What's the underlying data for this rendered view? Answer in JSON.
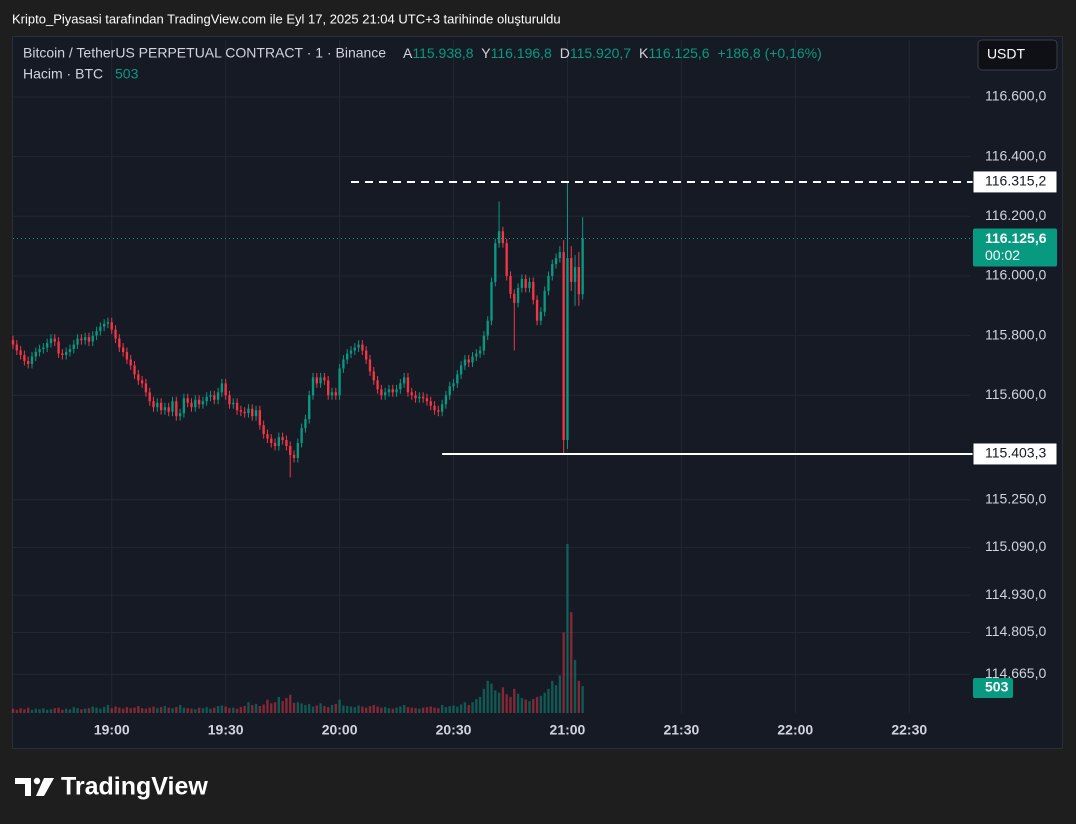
{
  "header": {
    "caption": "Kripto_Piyasasi tarafından TradingView.com ile Eyl 17, 2025 21:04 UTC+3 tarihinde oluşturuldu"
  },
  "chart_data": {
    "type": "candlestick",
    "symbol": "Bitcoin / TetherUS PERPETUAL CONTRACT · 1 · Binance",
    "legend": {
      "open_label": "A",
      "open": "115.938,8",
      "high_label": "Y",
      "high": "116.196,8",
      "low_label": "D",
      "low": "115.920,7",
      "close_label": "K",
      "close": "116.125,6",
      "change": "+186,8 (+0,16%)"
    },
    "volume_label": "Hacim · BTC",
    "volume_value": "503",
    "currency": "USDT",
    "x": [
      1114,
      1115,
      1116,
      1117,
      1118,
      1119,
      1120,
      1121,
      1122,
      1123,
      1124,
      1125,
      1126,
      1127,
      1128,
      1129,
      1130,
      1131,
      1132,
      1133,
      1134,
      1135,
      1136,
      1137,
      1138,
      1139,
      1140,
      1141,
      1142,
      1143,
      1144,
      1145,
      1146,
      1147,
      1148,
      1149,
      1150,
      1151,
      1152,
      1153,
      1154,
      1155,
      1156,
      1157,
      1158,
      1159,
      1160,
      1161,
      1162,
      1163,
      1164,
      1165,
      1166,
      1167,
      1168,
      1169,
      1170,
      1171,
      1172,
      1173,
      1174,
      1175,
      1176,
      1177,
      1178,
      1179,
      1180,
      1181,
      1182,
      1183,
      1184,
      1185,
      1186,
      1187,
      1188,
      1189,
      1190,
      1191,
      1192,
      1193,
      1194,
      1195,
      1196,
      1197,
      1198,
      1199,
      1200,
      1201,
      1202,
      1203,
      1204,
      1205,
      1206,
      1207,
      1208,
      1209,
      1210,
      1211,
      1212,
      1213,
      1214,
      1215,
      1216,
      1217,
      1218,
      1219,
      1220,
      1221,
      1222,
      1223,
      1224,
      1225,
      1226,
      1227,
      1228,
      1229,
      1230,
      1231,
      1232,
      1233,
      1234,
      1235,
      1236,
      1237,
      1238,
      1239,
      1240,
      1241,
      1242,
      1243,
      1244,
      1245,
      1246,
      1247,
      1248,
      1249,
      1250,
      1251,
      1252,
      1253,
      1254,
      1255,
      1256,
      1257,
      1258,
      1259,
      1260,
      1261,
      1262,
      1263,
      1264
    ],
    "ohlc": [
      [
        115785,
        115800,
        115755,
        115770
      ],
      [
        115770,
        115785,
        115735,
        115750
      ],
      [
        115750,
        115765,
        115720,
        115735
      ],
      [
        115735,
        115750,
        115700,
        115715
      ],
      [
        115715,
        115730,
        115690,
        115705
      ],
      [
        115705,
        115745,
        115690,
        115730
      ],
      [
        115730,
        115760,
        115715,
        115745
      ],
      [
        115745,
        115770,
        115730,
        115755
      ],
      [
        115755,
        115775,
        115740,
        115760
      ],
      [
        115760,
        115790,
        115745,
        115775
      ],
      [
        115775,
        115805,
        115760,
        115790
      ],
      [
        115790,
        115805,
        115765,
        115780
      ],
      [
        115780,
        115795,
        115725,
        115740
      ],
      [
        115740,
        115755,
        115720,
        115735
      ],
      [
        115735,
        115760,
        115720,
        115745
      ],
      [
        115745,
        115770,
        115730,
        115755
      ],
      [
        115755,
        115785,
        115740,
        115770
      ],
      [
        115770,
        115805,
        115755,
        115790
      ],
      [
        115790,
        115805,
        115770,
        115785
      ],
      [
        115785,
        115810,
        115770,
        115795
      ],
      [
        115795,
        115810,
        115765,
        115780
      ],
      [
        115780,
        115815,
        115765,
        115800
      ],
      [
        115800,
        115830,
        115785,
        115815
      ],
      [
        115815,
        115845,
        115800,
        115830
      ],
      [
        115830,
        115855,
        115815,
        115840
      ],
      [
        115840,
        115860,
        115825,
        115845
      ],
      [
        115845,
        115860,
        115805,
        115820
      ],
      [
        115820,
        115835,
        115775,
        115790
      ],
      [
        115790,
        115805,
        115745,
        115760
      ],
      [
        115760,
        115775,
        115730,
        115745
      ],
      [
        115745,
        115760,
        115705,
        115720
      ],
      [
        115720,
        115735,
        115685,
        115700
      ],
      [
        115700,
        115715,
        115655,
        115670
      ],
      [
        115670,
        115685,
        115635,
        115650
      ],
      [
        115650,
        115665,
        115625,
        115640
      ],
      [
        115640,
        115655,
        115595,
        115610
      ],
      [
        115610,
        115625,
        115565,
        115580
      ],
      [
        115580,
        115595,
        115545,
        115560
      ],
      [
        115560,
        115590,
        115545,
        115575
      ],
      [
        115575,
        115590,
        115535,
        115550
      ],
      [
        115550,
        115575,
        115535,
        115560
      ],
      [
        115560,
        115575,
        115530,
        115545
      ],
      [
        115545,
        115595,
        115530,
        115580
      ],
      [
        115580,
        115595,
        115515,
        115530
      ],
      [
        115530,
        115555,
        115515,
        115540
      ],
      [
        115540,
        115605,
        115525,
        115590
      ],
      [
        115590,
        115605,
        115560,
        115575
      ],
      [
        115575,
        115590,
        115545,
        115560
      ],
      [
        115560,
        115600,
        115545,
        115585
      ],
      [
        115585,
        115600,
        115555,
        115570
      ],
      [
        115570,
        115595,
        115555,
        115580
      ],
      [
        115580,
        115610,
        115565,
        115595
      ],
      [
        115595,
        115615,
        115580,
        115600
      ],
      [
        115600,
        115615,
        115570,
        115585
      ],
      [
        115585,
        115625,
        115570,
        115610
      ],
      [
        115610,
        115655,
        115595,
        115640
      ],
      [
        115640,
        115655,
        115585,
        115600
      ],
      [
        115600,
        115615,
        115555,
        115570
      ],
      [
        115570,
        115590,
        115555,
        115575
      ],
      [
        115575,
        115590,
        115535,
        115550
      ],
      [
        115550,
        115565,
        115530,
        115545
      ],
      [
        115545,
        115560,
        115525,
        115540
      ],
      [
        115540,
        115570,
        115525,
        115555
      ],
      [
        115555,
        115570,
        115515,
        115530
      ],
      [
        115530,
        115565,
        115515,
        115550
      ],
      [
        115550,
        115565,
        115485,
        115500
      ],
      [
        115500,
        115515,
        115455,
        115470
      ],
      [
        115470,
        115485,
        115440,
        115455
      ],
      [
        115455,
        115470,
        115425,
        115440
      ],
      [
        115440,
        115455,
        115415,
        115430
      ],
      [
        115430,
        115475,
        115415,
        115460
      ],
      [
        115460,
        115475,
        115435,
        115450
      ],
      [
        115450,
        115465,
        115415,
        115430
      ],
      [
        115430,
        115445,
        115325,
        115400
      ],
      [
        115400,
        115415,
        115375,
        115390
      ],
      [
        115390,
        115455,
        115375,
        115440
      ],
      [
        115440,
        115505,
        115425,
        115490
      ],
      [
        115490,
        115535,
        115475,
        115520
      ],
      [
        115520,
        115615,
        115505,
        115600
      ],
      [
        115600,
        115675,
        115585,
        115660
      ],
      [
        115660,
        115675,
        115625,
        115640
      ],
      [
        115640,
        115675,
        115625,
        115660
      ],
      [
        115660,
        115675,
        115635,
        115650
      ],
      [
        115650,
        115665,
        115585,
        115600
      ],
      [
        115600,
        115625,
        115585,
        115610
      ],
      [
        115610,
        115625,
        115585,
        115600
      ],
      [
        115600,
        115705,
        115585,
        115690
      ],
      [
        115690,
        115735,
        115675,
        115720
      ],
      [
        115720,
        115755,
        115705,
        115740
      ],
      [
        115740,
        115765,
        115725,
        115750
      ],
      [
        115750,
        115775,
        115735,
        115760
      ],
      [
        115760,
        115785,
        115745,
        115770
      ],
      [
        115770,
        115785,
        115735,
        115750
      ],
      [
        115750,
        115765,
        115705,
        115720
      ],
      [
        115720,
        115735,
        115665,
        115680
      ],
      [
        115680,
        115695,
        115635,
        115650
      ],
      [
        115650,
        115665,
        115605,
        115620
      ],
      [
        115620,
        115635,
        115585,
        115600
      ],
      [
        115600,
        115625,
        115585,
        115610
      ],
      [
        115610,
        115635,
        115595,
        115620
      ],
      [
        115620,
        115635,
        115595,
        115610
      ],
      [
        115610,
        115635,
        115595,
        115620
      ],
      [
        115620,
        115655,
        115605,
        115640
      ],
      [
        115640,
        115675,
        115625,
        115660
      ],
      [
        115660,
        115675,
        115595,
        115610
      ],
      [
        115610,
        115625,
        115585,
        115600
      ],
      [
        115600,
        115615,
        115575,
        115590
      ],
      [
        115590,
        115610,
        115575,
        115595
      ],
      [
        115595,
        115610,
        115575,
        115590
      ],
      [
        115590,
        115605,
        115565,
        115580
      ],
      [
        115580,
        115595,
        115550,
        115565
      ],
      [
        115565,
        115580,
        115535,
        115550
      ],
      [
        115550,
        115565,
        115530,
        115545
      ],
      [
        115545,
        115585,
        115530,
        115570
      ],
      [
        115570,
        115615,
        115555,
        115600
      ],
      [
        115600,
        115645,
        115585,
        115630
      ],
      [
        115630,
        115655,
        115615,
        115640
      ],
      [
        115640,
        115685,
        115625,
        115670
      ],
      [
        115670,
        115715,
        115655,
        115700
      ],
      [
        115700,
        115735,
        115685,
        115720
      ],
      [
        115720,
        115735,
        115695,
        115710
      ],
      [
        115710,
        115745,
        115695,
        115730
      ],
      [
        115730,
        115755,
        115715,
        115740
      ],
      [
        115740,
        115765,
        115725,
        115750
      ],
      [
        115750,
        115815,
        115735,
        115800
      ],
      [
        115800,
        115865,
        115785,
        115850
      ],
      [
        115850,
        115995,
        115835,
        115980
      ],
      [
        115980,
        116125,
        115965,
        116110
      ],
      [
        116110,
        116250,
        116095,
        116150
      ],
      [
        116150,
        116165,
        116095,
        116110
      ],
      [
        116110,
        116125,
        115985,
        116000
      ],
      [
        116000,
        116015,
        115925,
        115940
      ],
      [
        115940,
        115955,
        115750,
        115910
      ],
      [
        115910,
        115975,
        115895,
        115960
      ],
      [
        115960,
        116005,
        115945,
        115990
      ],
      [
        115990,
        116005,
        115945,
        115960
      ],
      [
        115960,
        115995,
        115945,
        115980
      ],
      [
        115980,
        115995,
        115905,
        115920
      ],
      [
        115920,
        115935,
        115835,
        115850
      ],
      [
        115850,
        115895,
        115835,
        115880
      ],
      [
        115880,
        115965,
        115865,
        115950
      ],
      [
        115950,
        116015,
        115935,
        116000
      ],
      [
        116000,
        116055,
        115985,
        116040
      ],
      [
        116040,
        116075,
        116025,
        116060
      ],
      [
        116060,
        116100,
        116045,
        116080
      ],
      [
        116080,
        116120,
        115403.3,
        115450
      ],
      [
        115450,
        116315.2,
        115420,
        116060
      ],
      [
        116060,
        116100,
        115950,
        115980
      ],
      [
        115980,
        116070,
        115900,
        116030
      ],
      [
        116030,
        116080,
        115900,
        115938.8
      ],
      [
        115938.8,
        116196.8,
        115920.7,
        116125.6
      ]
    ],
    "volume": [
      80,
      60,
      90,
      70,
      100,
      60,
      80,
      70,
      90,
      60,
      70,
      90,
      100,
      60,
      80,
      70,
      110,
      90,
      70,
      80,
      90,
      120,
      100,
      80,
      110,
      150,
      90,
      120,
      100,
      80,
      110,
      90,
      100,
      130,
      90,
      80,
      100,
      120,
      90,
      110,
      130,
      100,
      90,
      110,
      150,
      100,
      90,
      80,
      70,
      100,
      90,
      110,
      80,
      100,
      130,
      140,
      120,
      90,
      100,
      80,
      110,
      130,
      200,
      150,
      170,
      130,
      160,
      250,
      180,
      200,
      300,
      220,
      280,
      340,
      190,
      200,
      180,
      150,
      170,
      120,
      140,
      180,
      130,
      110,
      150,
      170,
      250,
      140,
      130,
      120,
      110,
      140,
      120,
      100,
      130,
      150,
      120,
      100,
      110,
      90,
      80,
      100,
      120,
      150,
      110,
      100,
      90,
      80,
      100,
      110,
      120,
      100,
      90,
      150,
      110,
      130,
      140,
      120,
      160,
      200,
      150,
      200,
      260,
      300,
      450,
      600,
      550,
      420,
      380,
      480,
      350,
      300,
      450,
      360,
      280,
      250,
      220,
      260,
      300,
      320,
      380,
      450,
      600,
      520,
      700,
      1500,
      3150,
      1880,
      990,
      600,
      503
    ],
    "up_color": "#089981",
    "down_color": "#f23645",
    "xlim": [
      1114,
      1366
    ],
    "xticks": [
      {
        "value": 1140,
        "label": "19:00"
      },
      {
        "value": 1170,
        "label": "19:30"
      },
      {
        "value": 1200,
        "label": "20:00"
      },
      {
        "value": 1230,
        "label": "20:30"
      },
      {
        "value": 1260,
        "label": "21:00"
      },
      {
        "value": 1290,
        "label": "21:30"
      },
      {
        "value": 1320,
        "label": "22:00"
      },
      {
        "value": 1350,
        "label": "22:30"
      }
    ],
    "ylim": [
      114535,
      116791
    ],
    "yticks": [
      {
        "value": 116600,
        "label": "116.600,0"
      },
      {
        "value": 116400,
        "label": "116.400,0"
      },
      {
        "value": 116200,
        "label": "116.200,0"
      },
      {
        "value": 116000,
        "label": "116.000,0"
      },
      {
        "value": 115800,
        "label": "115.800,0"
      },
      {
        "value": 115600,
        "label": "115.600,0"
      },
      {
        "value": 115250,
        "label": "115.250,0"
      },
      {
        "value": 115090,
        "label": "115.090,0"
      },
      {
        "value": 114930,
        "label": "114.930,0"
      },
      {
        "value": 114805,
        "label": "114.805,0"
      },
      {
        "value": 114665,
        "label": "114.665,0"
      }
    ],
    "grid": true,
    "price_lines": [
      {
        "value": 116315.2,
        "label": "116.315,2",
        "style": "dashed",
        "start": 1203
      },
      {
        "value": 115403.3,
        "label": "115.403,3",
        "style": "solid",
        "start": 1227
      }
    ],
    "last_price_label": "116.125,6",
    "countdown": "00:02"
  },
  "footer": {
    "logo": "TradingView"
  }
}
